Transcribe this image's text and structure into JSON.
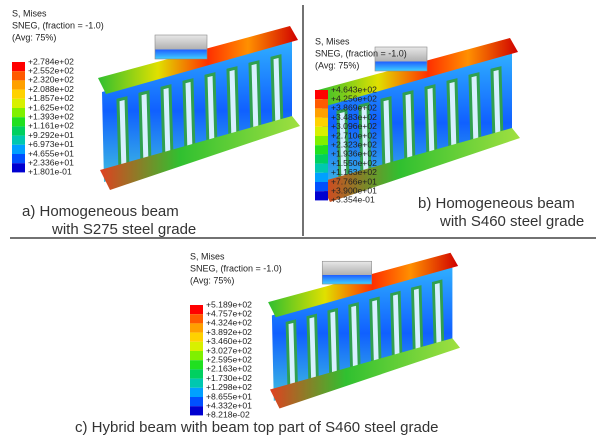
{
  "panels": [
    {
      "legend": {
        "title": "S, Mises",
        "subtitle": "SNEG, (fraction = -1.0)",
        "average": "(Avg: 75%)",
        "labels": [
          "+2.784e+02",
          "+2.552e+02",
          "+2.320e+02",
          "+2.088e+02",
          "+1.857e+02",
          "+1.625e+02",
          "+1.393e+02",
          "+1.161e+02",
          "+9.292e+01",
          "+6.973e+01",
          "+4.655e+01",
          "+2.336e+01",
          "+1.801e-01"
        ]
      },
      "caption": [
        "a) Homogeneous beam",
        "with S275 steel grade"
      ]
    },
    {
      "legend": {
        "title": "S, Mises",
        "subtitle": "SNEG, (fraction = -1.0)",
        "average": "(Avg: 75%)",
        "labels": [
          "+4.643e+02",
          "+4.256e+02",
          "+3.869e+02",
          "+3.483e+02",
          "+3.096e+02",
          "+2.710e+02",
          "+2.323e+02",
          "+1.936e+02",
          "+1.550e+02",
          "+1.163e+02",
          "+7.766e+01",
          "+3.900e+01",
          "+3.354e-01"
        ]
      },
      "caption": [
        "b) Homogeneous beam",
        "with S460 steel grade"
      ]
    },
    {
      "legend": {
        "title": "S, Mises",
        "subtitle": "SNEG, (fraction = -1.0)",
        "average": "(Avg: 75%)",
        "labels": [
          "+5.189e+02",
          "+4.757e+02",
          "+4.324e+02",
          "+3.892e+02",
          "+3.460e+02",
          "+3.027e+02",
          "+2.595e+02",
          "+2.163e+02",
          "+1.730e+02",
          "+1.298e+02",
          "+8.655e+01",
          "+4.332e+01",
          "+8.218e-02"
        ]
      },
      "caption": [
        "c) Hybrid beam with beam top part of S460 steel grade"
      ]
    }
  ]
}
